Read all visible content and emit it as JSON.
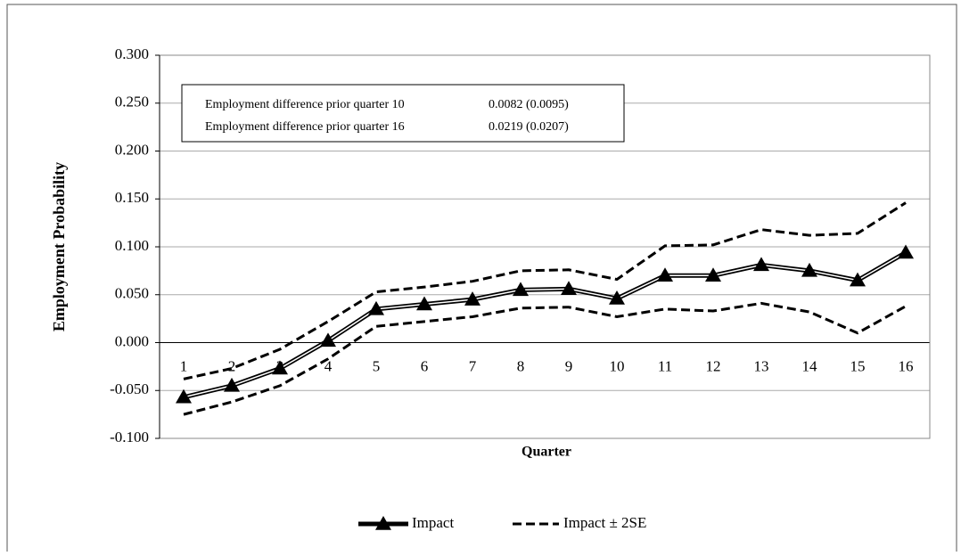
{
  "chart_data": {
    "type": "line",
    "x_label": "Quarter",
    "y_label": "Employment Probability",
    "categories": [
      "1",
      "2",
      "3",
      "4",
      "5",
      "6",
      "7",
      "8",
      "9",
      "10",
      "11",
      "12",
      "13",
      "14",
      "15",
      "16"
    ],
    "series": [
      {
        "name": "Impact",
        "color": "#000000",
        "marker": "triangle",
        "values": [
          -0.057,
          -0.045,
          -0.027,
          0.002,
          0.035,
          0.04,
          0.045,
          0.055,
          0.056,
          0.046,
          0.07,
          0.07,
          0.081,
          0.075,
          0.065,
          0.094
        ]
      },
      {
        "name": "Impact ± 2SE",
        "color": "#000000",
        "style": "dashed",
        "upper": [
          -0.038,
          -0.027,
          -0.007,
          0.022,
          0.053,
          0.058,
          0.064,
          0.075,
          0.076,
          0.066,
          0.101,
          0.102,
          0.118,
          0.112,
          0.114,
          0.146
        ],
        "lower": [
          -0.075,
          -0.062,
          -0.045,
          -0.017,
          0.017,
          0.022,
          0.027,
          0.036,
          0.037,
          0.027,
          0.035,
          0.033,
          0.041,
          0.032,
          0.01,
          0.038
        ]
      }
    ],
    "ylim": [
      -0.1,
      0.3
    ],
    "yticks": [
      {
        "value": -0.1,
        "label": "-0.100"
      },
      {
        "value": -0.05,
        "label": "-0.050"
      },
      {
        "value": 0,
        "label": "0.000"
      },
      {
        "value": 0.05,
        "label": "0.050"
      },
      {
        "value": 0.1,
        "label": "0.100"
      },
      {
        "value": 0.15,
        "label": "0.150"
      },
      {
        "value": 0.2,
        "label": "0.200"
      },
      {
        "value": 0.25,
        "label": "0.250"
      },
      {
        "value": 0.3,
        "label": "0.300"
      }
    ],
    "grid": true,
    "legend": "bottom",
    "annotation": {
      "rows": [
        [
          "Employment difference prior quarter 10",
          "0.0082 (0.0095)"
        ],
        [
          "Employment difference prior quarter 16",
          "0.0219 (0.0207)"
        ]
      ]
    }
  }
}
